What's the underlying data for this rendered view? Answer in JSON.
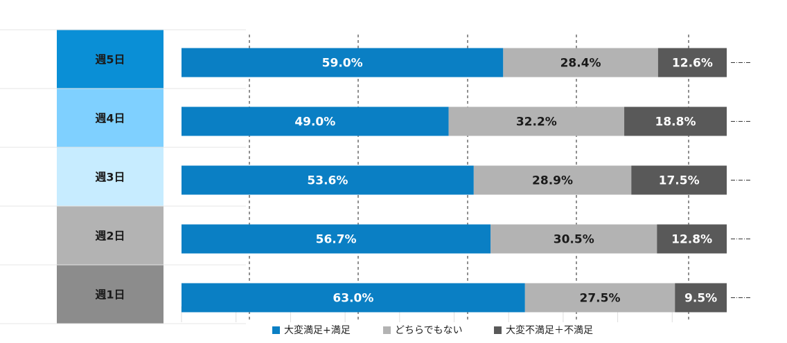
{
  "chart_data": {
    "type": "bar",
    "orientation": "horizontal",
    "stacked": true,
    "percent_stacked": true,
    "categories": [
      "週5日",
      "週4日",
      "週3日",
      "週2日",
      "週1日"
    ],
    "category_colors": [
      "#0a8fd6",
      "#7fd0ff",
      "#c7ecff",
      "#b3b3b3",
      "#8c8c8c"
    ],
    "series": [
      {
        "name": "大変満足+満足",
        "color": "#0a7fc4",
        "label_color": "#ffffff",
        "values": [
          59.0,
          49.0,
          53.6,
          56.7,
          63.0
        ],
        "labels": [
          "59.0%",
          "49.0%",
          "53.6%",
          "56.7%",
          "63.0%"
        ]
      },
      {
        "name": "どちらでもない",
        "color": "#b3b3b3",
        "label_color": "#1a1a1a",
        "values": [
          28.4,
          32.2,
          28.9,
          30.5,
          27.5
        ],
        "labels": [
          "28.4%",
          "32.2%",
          "28.9%",
          "30.5%",
          "27.5%"
        ]
      },
      {
        "name": "大変不満足＋不満足",
        "color": "#595959",
        "label_color": "#ffffff",
        "values": [
          12.6,
          18.8,
          17.5,
          12.8,
          9.5
        ],
        "labels": [
          "12.6%",
          "18.8%",
          "17.5%",
          "12.8%",
          "9.5%"
        ]
      }
    ],
    "xlim": [
      0,
      100
    ],
    "gridlines": "dashed vertical",
    "legend_position": "bottom"
  }
}
